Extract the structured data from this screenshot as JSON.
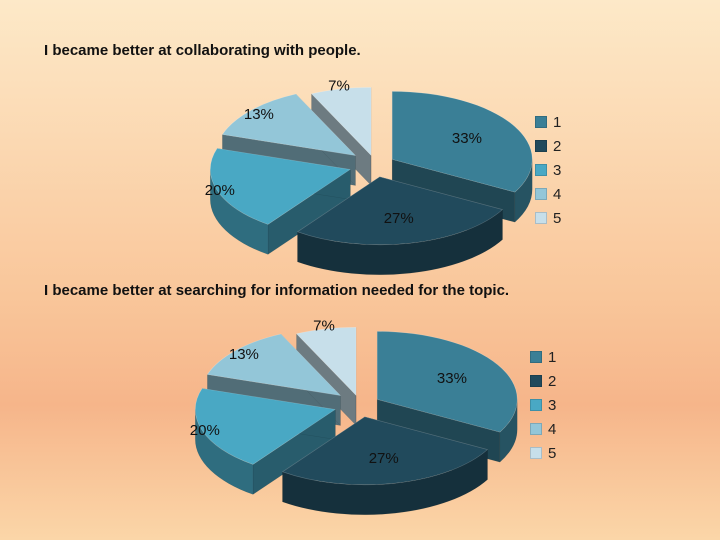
{
  "colors": [
    "#3a7f96",
    "#214a5c",
    "#49a8c4",
    "#93c6d8",
    "#c7dfea"
  ],
  "chart_data": [
    {
      "type": "pie",
      "title": "I became better at collaborating with people.",
      "categories": [
        "1",
        "2",
        "3",
        "4",
        "5"
      ],
      "values": [
        33,
        27,
        20,
        13,
        7
      ],
      "labels": [
        "33%",
        "27%",
        "20%",
        "13%",
        "7%"
      ],
      "legend": "right"
    },
    {
      "type": "pie",
      "title": "I became better at searching for information needed for the topic.",
      "categories": [
        "1",
        "2",
        "3",
        "4",
        "5"
      ],
      "values": [
        33,
        27,
        20,
        13,
        7
      ],
      "labels": [
        "33%",
        "27%",
        "20%",
        "13%",
        "7%"
      ],
      "legend": "right"
    }
  ]
}
